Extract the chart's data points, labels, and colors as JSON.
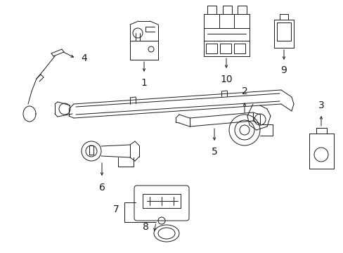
{
  "background_color": "#ffffff",
  "line_color": "#1a1a1a",
  "lw": 0.7,
  "fig_w": 4.89,
  "fig_h": 3.6,
  "dpi": 100
}
